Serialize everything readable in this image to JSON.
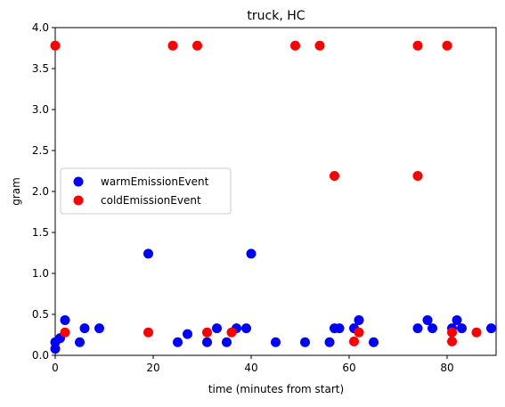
{
  "chart_data": {
    "type": "scatter",
    "title": "truck, HC",
    "xlabel": "time (minutes from start)",
    "ylabel": "gram",
    "xlim": [
      0,
      90
    ],
    "ylim": [
      0,
      4.0
    ],
    "x_ticks": [
      "0",
      "20",
      "40",
      "60",
      "80"
    ],
    "y_ticks": [
      "0.0",
      "0.5",
      "1.0",
      "1.5",
      "2.0",
      "2.5",
      "3.0",
      "3.5",
      "4.0"
    ],
    "grid": false,
    "legend": "center-left",
    "series": [
      {
        "name": "warmEmissionEvent",
        "color": "#0000ff",
        "points": [
          {
            "x": 0,
            "y": 0.08
          },
          {
            "x": 0,
            "y": 0.16
          },
          {
            "x": 1,
            "y": 0.21
          },
          {
            "x": 2,
            "y": 0.43
          },
          {
            "x": 5,
            "y": 0.16
          },
          {
            "x": 6,
            "y": 0.33
          },
          {
            "x": 9,
            "y": 0.33
          },
          {
            "x": 19,
            "y": 1.24
          },
          {
            "x": 25,
            "y": 0.16
          },
          {
            "x": 27,
            "y": 0.26
          },
          {
            "x": 31,
            "y": 0.16
          },
          {
            "x": 33,
            "y": 0.33
          },
          {
            "x": 35,
            "y": 0.16
          },
          {
            "x": 37,
            "y": 0.33
          },
          {
            "x": 39,
            "y": 0.33
          },
          {
            "x": 40,
            "y": 1.24
          },
          {
            "x": 45,
            "y": 0.16
          },
          {
            "x": 51,
            "y": 0.16
          },
          {
            "x": 56,
            "y": 0.16
          },
          {
            "x": 57,
            "y": 0.33
          },
          {
            "x": 58,
            "y": 0.33
          },
          {
            "x": 61,
            "y": 0.33
          },
          {
            "x": 62,
            "y": 0.43
          },
          {
            "x": 65,
            "y": 0.16
          },
          {
            "x": 74,
            "y": 0.33
          },
          {
            "x": 76,
            "y": 0.43
          },
          {
            "x": 77,
            "y": 0.33
          },
          {
            "x": 81,
            "y": 0.33
          },
          {
            "x": 82,
            "y": 0.43
          },
          {
            "x": 83,
            "y": 0.33
          },
          {
            "x": 89,
            "y": 0.33
          }
        ]
      },
      {
        "name": "coldEmissionEvent",
        "color": "#ff0000",
        "points": [
          {
            "x": 0,
            "y": 3.78
          },
          {
            "x": 2,
            "y": 0.28
          },
          {
            "x": 19,
            "y": 0.28
          },
          {
            "x": 24,
            "y": 3.78
          },
          {
            "x": 29,
            "y": 3.78
          },
          {
            "x": 31,
            "y": 0.28
          },
          {
            "x": 36,
            "y": 0.28
          },
          {
            "x": 49,
            "y": 3.78
          },
          {
            "x": 54,
            "y": 3.78
          },
          {
            "x": 57,
            "y": 2.19
          },
          {
            "x": 61,
            "y": 0.17
          },
          {
            "x": 62,
            "y": 0.28
          },
          {
            "x": 74,
            "y": 3.78
          },
          {
            "x": 74,
            "y": 2.19
          },
          {
            "x": 80,
            "y": 3.78
          },
          {
            "x": 81,
            "y": 0.28
          },
          {
            "x": 81,
            "y": 0.17
          },
          {
            "x": 86,
            "y": 0.28
          }
        ]
      }
    ]
  }
}
